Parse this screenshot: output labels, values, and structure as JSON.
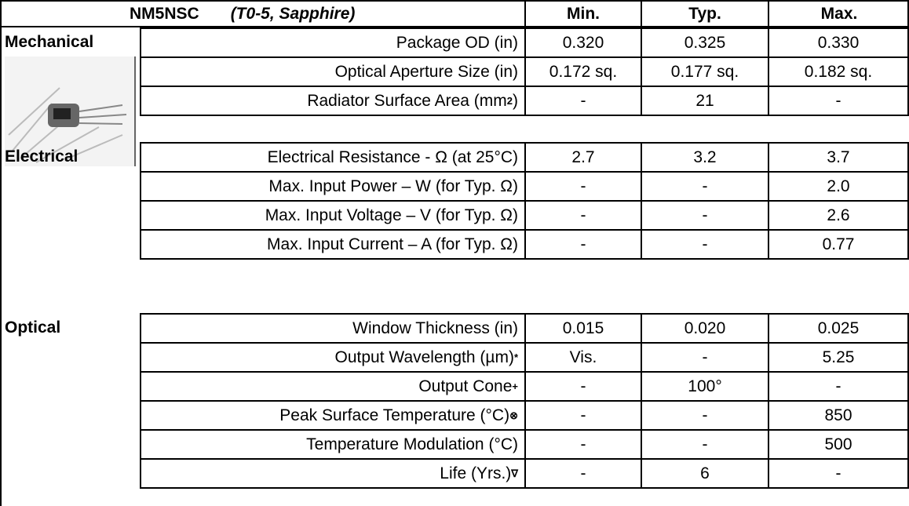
{
  "header": {
    "title": "NM5NSC",
    "subtitle": "(T0-5, Sapphire)",
    "columns": [
      "Min.",
      "Typ.",
      "Max."
    ]
  },
  "sections": [
    {
      "name": "Mechanical",
      "rows": [
        {
          "label": "Package OD (in)",
          "values": [
            "0.320",
            "0.325",
            "0.330"
          ]
        },
        {
          "label": "Optical Aperture Size (in)",
          "values": [
            "0.172 sq.",
            "0.177 sq.",
            "0.182 sq."
          ]
        },
        {
          "label": "Radiator Surface Area (mm",
          "sup": "2",
          "tail": ")",
          "values": [
            "-",
            "21",
            "-"
          ]
        }
      ]
    },
    {
      "name": "Electrical",
      "rows": [
        {
          "label": "Electrical Resistance - Ω (at 25°C)",
          "values": [
            "2.7",
            "3.2",
            "3.7"
          ]
        },
        {
          "label": "Max. Input Power – W (for Typ. Ω)",
          "values": [
            "-",
            "-",
            "2.0"
          ]
        },
        {
          "label": "Max. Input Voltage – V (for Typ. Ω)",
          "values": [
            "-",
            "-",
            "2.6"
          ]
        },
        {
          "label": "Max. Input Current – A (for Typ. Ω)",
          "values": [
            "-",
            "-",
            "0.77"
          ]
        }
      ]
    },
    {
      "name": "Optical",
      "rows": [
        {
          "label": "Window Thickness (in)",
          "values": [
            "0.015",
            "0.020",
            "0.025"
          ]
        },
        {
          "label": "Output Wavelength (µm)",
          "sup": "*",
          "values": [
            "Vis.",
            "-",
            "5.25"
          ]
        },
        {
          "label": "Output Cone",
          "sup": "+",
          "values": [
            "-",
            "100°",
            "-"
          ]
        },
        {
          "label": "Peak Surface Temperature (°C)",
          "sup": "⊗",
          "values": [
            "-",
            "-",
            "850"
          ]
        },
        {
          "label": "Temperature Modulation (°C)",
          "values": [
            "-",
            "-",
            "500"
          ]
        },
        {
          "label": "Life (Yrs.)",
          "sup": "∇",
          "values": [
            "-",
            "6",
            "-"
          ]
        }
      ]
    }
  ]
}
